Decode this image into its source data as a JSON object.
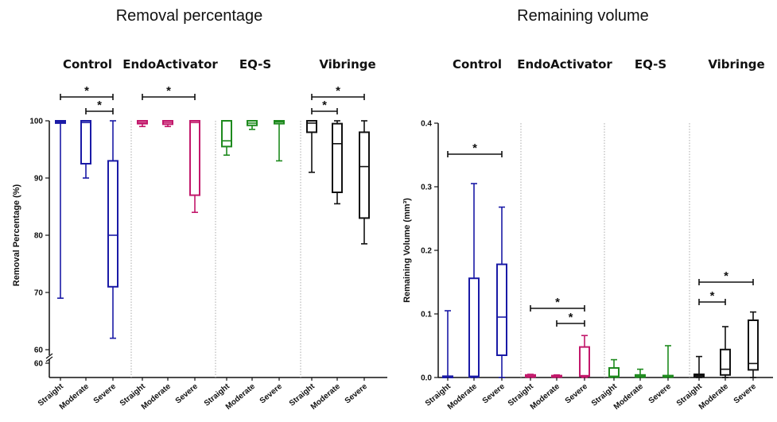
{
  "chart_data": [
    {
      "type": "box",
      "title": "Removal percentage",
      "ylabel": "Removal Percentage (%)",
      "ylim": [
        60,
        100
      ],
      "axis_break": true,
      "yticks": [
        "60",
        "70",
        "80",
        "90",
        "100"
      ],
      "ybreak_label": "60",
      "grid": false,
      "groups": [
        {
          "name": "Control",
          "color": "#1a1aa6"
        },
        {
          "name": "EndoActivator",
          "color": "#c2186b"
        },
        {
          "name": "EQ-S",
          "color": "#1e8a1e"
        },
        {
          "name": "Vibringe",
          "color": "#111111"
        }
      ],
      "categories": [
        "Straight",
        "Moderate",
        "Severe"
      ],
      "series": [
        {
          "group": "Control",
          "category": "Straight",
          "min": 69,
          "q1": 99.6,
          "median": 99.8,
          "q3": 100,
          "max": 100
        },
        {
          "group": "Control",
          "category": "Moderate",
          "min": 90,
          "q1": 92.5,
          "median": 99.7,
          "q3": 100,
          "max": 100
        },
        {
          "group": "Control",
          "category": "Severe",
          "min": 62,
          "q1": 71,
          "median": 80,
          "q3": 93,
          "max": 100
        },
        {
          "group": "EndoActivator",
          "category": "Straight",
          "min": 99,
          "q1": 99.5,
          "median": 99.7,
          "q3": 100,
          "max": 100
        },
        {
          "group": "EndoActivator",
          "category": "Moderate",
          "min": 99,
          "q1": 99.4,
          "median": 99.7,
          "q3": 100,
          "max": 100
        },
        {
          "group": "EndoActivator",
          "category": "Severe",
          "min": 84,
          "q1": 87,
          "median": 99.7,
          "q3": 100,
          "max": 100
        },
        {
          "group": "EQ-S",
          "category": "Straight",
          "min": 94,
          "q1": 95.5,
          "median": 96.5,
          "q3": 100,
          "max": 100
        },
        {
          "group": "EQ-S",
          "category": "Moderate",
          "min": 98.5,
          "q1": 99.2,
          "median": 99.6,
          "q3": 100,
          "max": 100
        },
        {
          "group": "EQ-S",
          "category": "Severe",
          "min": 93,
          "q1": 99.5,
          "median": 99.8,
          "q3": 100,
          "max": 100
        },
        {
          "group": "Vibringe",
          "category": "Straight",
          "min": 91,
          "q1": 98,
          "median": 99.6,
          "q3": 100,
          "max": 100
        },
        {
          "group": "Vibringe",
          "category": "Moderate",
          "min": 85.5,
          "q1": 87.5,
          "median": 96,
          "q3": 99.5,
          "max": 100
        },
        {
          "group": "Vibringe",
          "category": "Severe",
          "min": 78.5,
          "q1": 83,
          "median": 92,
          "q3": 98,
          "max": 100
        }
      ],
      "significance": [
        {
          "group": "Control",
          "from": "Straight",
          "to": "Severe",
          "label": "*"
        },
        {
          "group": "Control",
          "from": "Moderate",
          "to": "Severe",
          "label": "*"
        },
        {
          "group": "EndoActivator",
          "from": "Straight",
          "to": "Severe",
          "label": "*"
        },
        {
          "group": "Vibringe",
          "from": "Straight",
          "to": "Severe",
          "label": "*"
        },
        {
          "group": "Vibringe",
          "from": "Straight",
          "to": "Moderate",
          "label": "*"
        }
      ]
    },
    {
      "type": "box",
      "title": "Remaining volume",
      "ylabel": "Remaining Volume (mm³)",
      "ylim": [
        0,
        0.4
      ],
      "yticks": [
        "0.0",
        "0.1",
        "0.2",
        "0.3",
        "0.4"
      ],
      "grid": false,
      "groups": [
        {
          "name": "Control",
          "color": "#1a1aa6"
        },
        {
          "name": "EndoActivator",
          "color": "#c2186b"
        },
        {
          "name": "EQ-S",
          "color": "#1e8a1e"
        },
        {
          "name": "Vibringe",
          "color": "#111111"
        }
      ],
      "categories": [
        "Straight",
        "Moderate",
        "Severe"
      ],
      "series": [
        {
          "group": "Control",
          "category": "Straight",
          "min": 0,
          "q1": 0,
          "median": 0.001,
          "q3": 0.002,
          "max": 0.105
        },
        {
          "group": "Control",
          "category": "Moderate",
          "min": 0,
          "q1": 0.001,
          "median": 0.002,
          "q3": 0.156,
          "max": 0.305
        },
        {
          "group": "Control",
          "category": "Severe",
          "min": 0,
          "q1": 0.035,
          "median": 0.095,
          "q3": 0.178,
          "max": 0.268
        },
        {
          "group": "EndoActivator",
          "category": "Straight",
          "min": 0,
          "q1": 0.001,
          "median": 0.002,
          "q3": 0.004,
          "max": 0.005
        },
        {
          "group": "EndoActivator",
          "category": "Moderate",
          "min": 0,
          "q1": 0.001,
          "median": 0.002,
          "q3": 0.003,
          "max": 0.004
        },
        {
          "group": "EndoActivator",
          "category": "Severe",
          "min": 0,
          "q1": 0.002,
          "median": 0.003,
          "q3": 0.048,
          "max": 0.066
        },
        {
          "group": "EQ-S",
          "category": "Straight",
          "min": 0,
          "q1": 0.001,
          "median": 0.002,
          "q3": 0.015,
          "max": 0.028
        },
        {
          "group": "EQ-S",
          "category": "Moderate",
          "min": 0,
          "q1": 0.001,
          "median": 0.002,
          "q3": 0.004,
          "max": 0.013
        },
        {
          "group": "EQ-S",
          "category": "Severe",
          "min": 0,
          "q1": 0.001,
          "median": 0.002,
          "q3": 0.003,
          "max": 0.05
        },
        {
          "group": "Vibringe",
          "category": "Straight",
          "min": 0,
          "q1": 0.001,
          "median": 0.003,
          "q3": 0.005,
          "max": 0.033
        },
        {
          "group": "Vibringe",
          "category": "Moderate",
          "min": 0,
          "q1": 0.004,
          "median": 0.013,
          "q3": 0.044,
          "max": 0.08
        },
        {
          "group": "Vibringe",
          "category": "Severe",
          "min": 0,
          "q1": 0.012,
          "median": 0.022,
          "q3": 0.09,
          "max": 0.103
        }
      ],
      "significance": [
        {
          "group": "Control",
          "from": "Straight",
          "to": "Severe",
          "label": "*"
        },
        {
          "group": "EndoActivator",
          "from": "Straight",
          "to": "Severe",
          "label": "*"
        },
        {
          "group": "EndoActivator",
          "from": "Moderate",
          "to": "Severe",
          "label": "*"
        },
        {
          "group": "Vibringe",
          "from": "Straight",
          "to": "Severe",
          "label": "*"
        },
        {
          "group": "Vibringe",
          "from": "Straight",
          "to": "Moderate",
          "label": "*"
        }
      ]
    }
  ]
}
